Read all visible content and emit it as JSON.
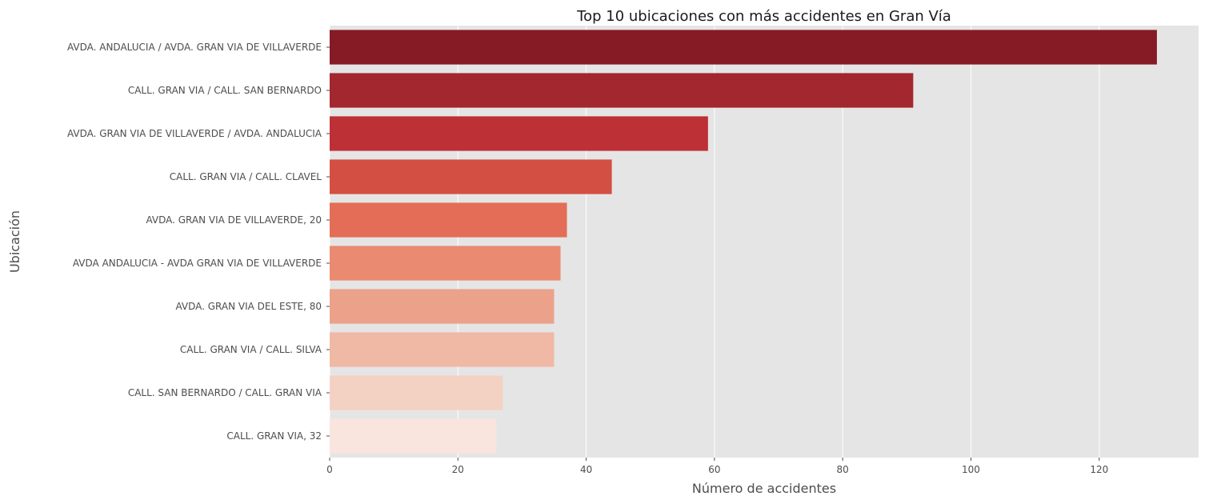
{
  "chart_data": {
    "type": "bar",
    "orientation": "horizontal",
    "title": "Top 10 ubicaciones con más accidentes en Gran Vía",
    "xlabel": "Número de accidentes",
    "ylabel": "Ubicación",
    "xlim": [
      0,
      135.5
    ],
    "xticks": [
      0,
      20,
      40,
      60,
      80,
      100,
      120
    ],
    "grid": true,
    "categories": [
      "AVDA. ANDALUCIA / AVDA. GRAN VIA DE VILLAVERDE",
      "CALL. GRAN VIA / CALL. SAN BERNARDO",
      "AVDA. GRAN VIA DE VILLAVERDE / AVDA. ANDALUCIA",
      "CALL. GRAN VIA / CALL. CLAVEL",
      "AVDA. GRAN VIA DE VILLAVERDE, 20",
      "AVDA  ANDALUCIA - AVDA  GRAN VIA DE VILLAVERDE",
      "AVDA. GRAN VIA DEL ESTE, 80",
      "CALL. GRAN VIA / CALL. SILVA",
      "CALL. SAN BERNARDO / CALL. GRAN VIA",
      "CALL. GRAN VIA, 32"
    ],
    "values": [
      129,
      91,
      59,
      44,
      37,
      36,
      35,
      35,
      27,
      26
    ],
    "colors": [
      "#861b25",
      "#a3272e",
      "#bd3035",
      "#d44f43",
      "#e46d57",
      "#ea8a70",
      "#eca28a",
      "#f0b9a5",
      "#f4d2c3",
      "#f9e5dd"
    ],
    "background": "#e5e5e5",
    "grid_color": "#ffffff"
  }
}
